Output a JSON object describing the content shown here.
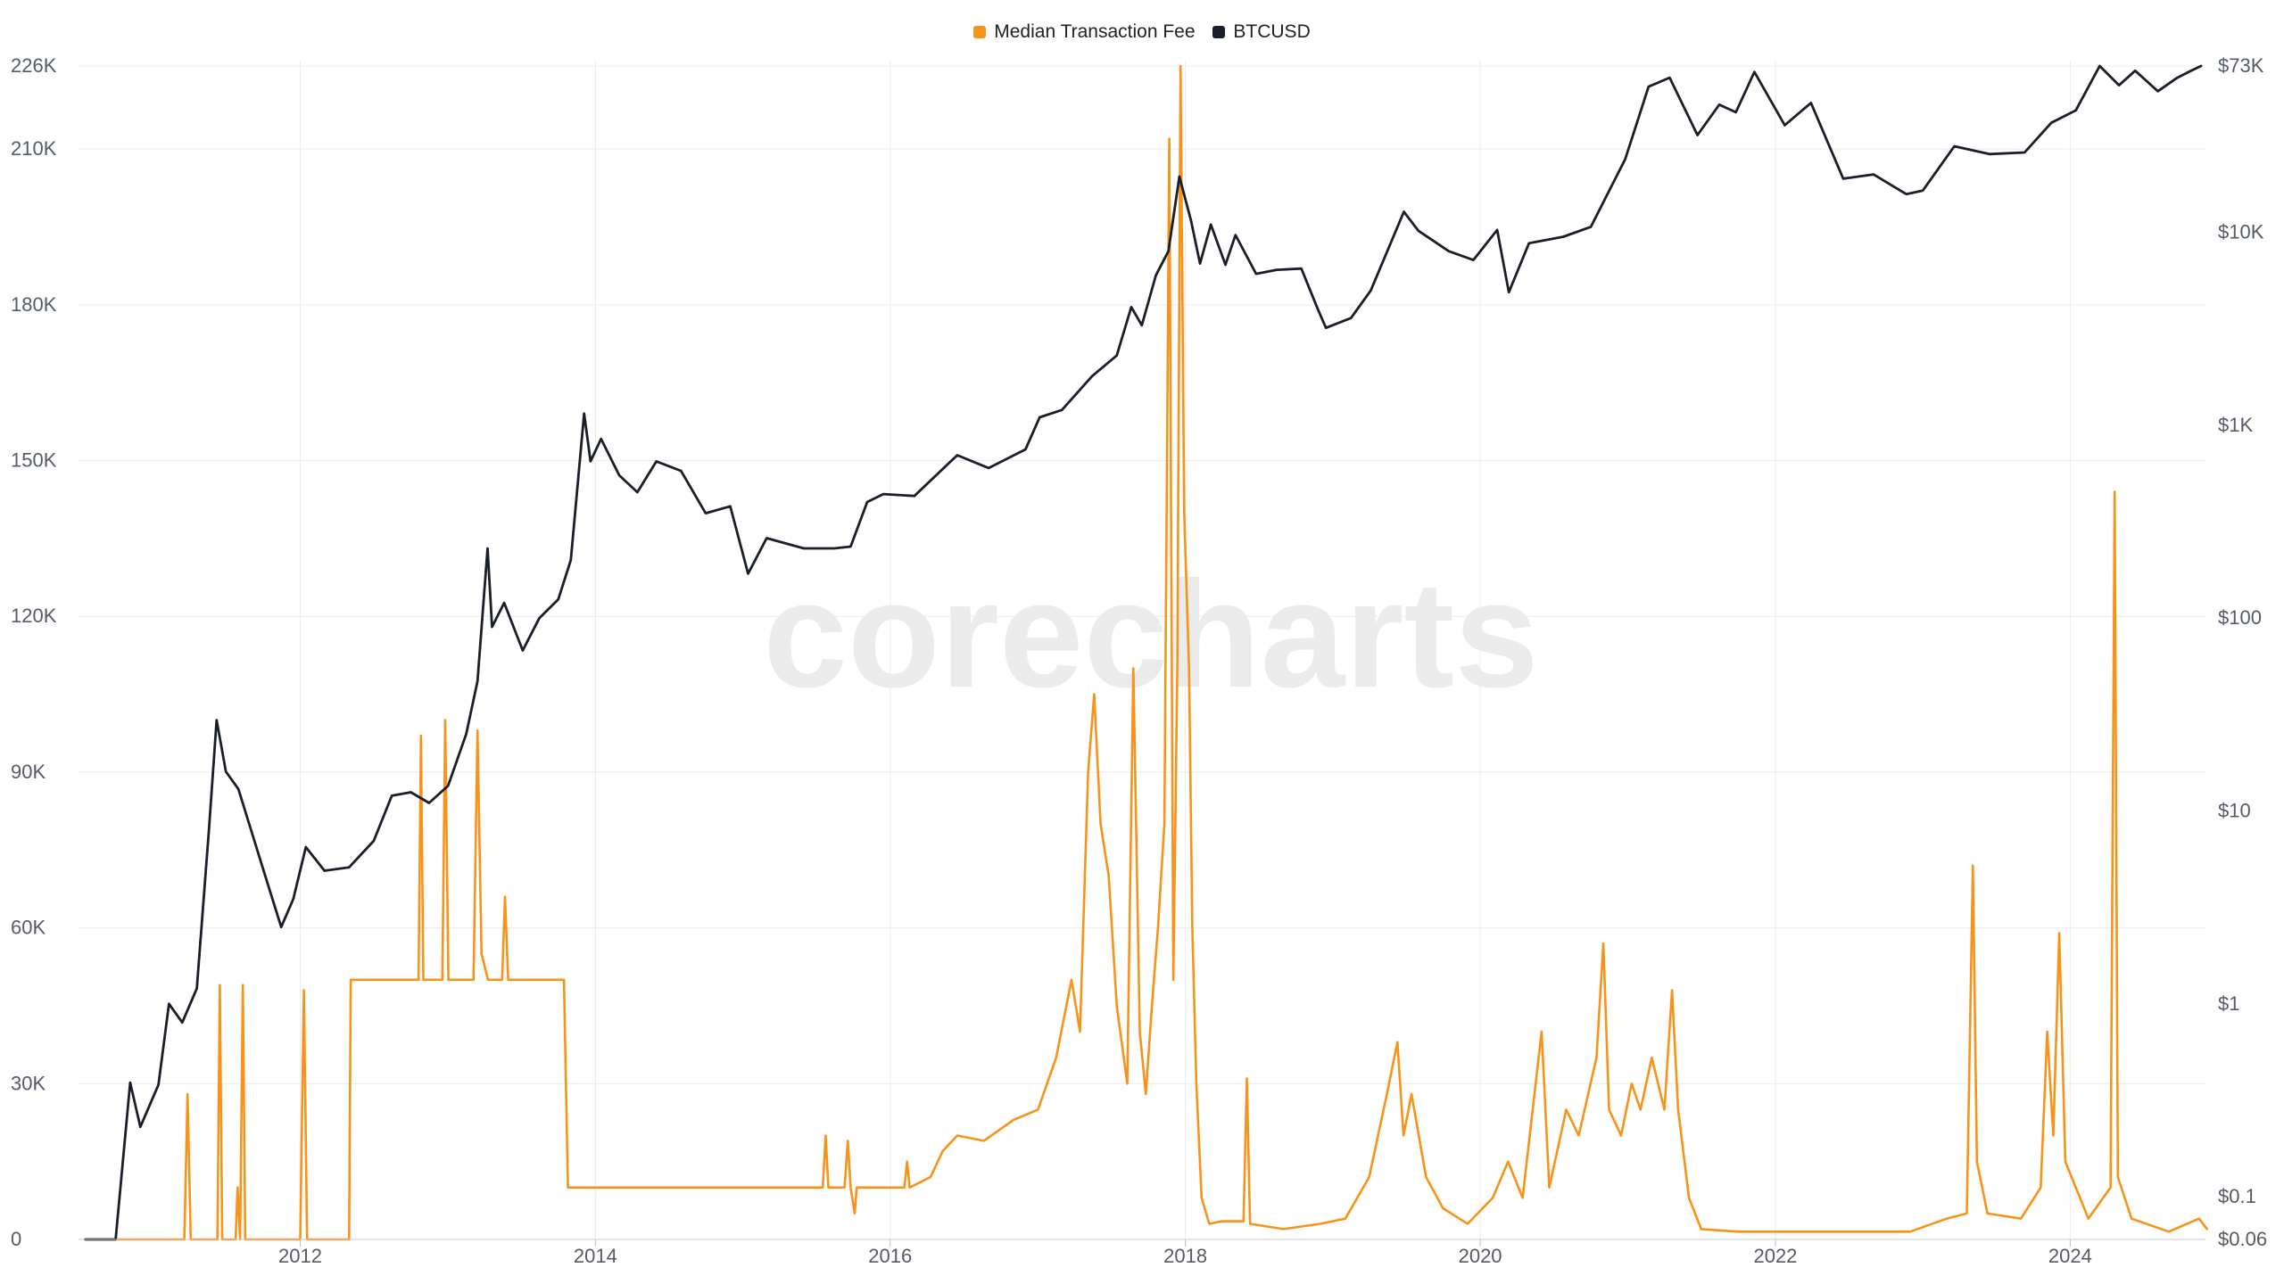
{
  "watermark": "corecharts",
  "legend": [
    {
      "label": "Median Transaction Fee",
      "color": "#f7931a"
    },
    {
      "label": "BTCUSD",
      "color": "#191e29"
    }
  ],
  "chart_data": {
    "type": "line",
    "x_ticks": [
      "2012",
      "2014",
      "2016",
      "2018",
      "2020",
      "2022",
      "2024"
    ],
    "xlim": [
      "2010-07",
      "2024-12"
    ],
    "left_axis": {
      "ticks": [
        "0",
        "30K",
        "60K",
        "90K",
        "120K",
        "150K",
        "180K",
        "210K",
        "226K"
      ],
      "ylim": [
        0,
        226000
      ]
    },
    "right_axis": {
      "scale": "log",
      "ticks": [
        "$0.06",
        "$0.1",
        "$1",
        "$10",
        "$100",
        "$1K",
        "$10K",
        "$73K"
      ],
      "ylim": [
        0.06,
        73000
      ]
    },
    "grid": true,
    "legend_position": "top-center",
    "series": [
      {
        "name": "Median Transaction Fee",
        "color": "#f7931a",
        "axis": "left",
        "points": [
          [
            "2010-07-18",
            0
          ],
          [
            "2011-03-20",
            0
          ],
          [
            "2011-03-28",
            28000
          ],
          [
            "2011-04-05",
            0
          ],
          [
            "2011-06-10",
            0
          ],
          [
            "2011-06-16",
            49000
          ],
          [
            "2011-06-22",
            0
          ],
          [
            "2011-07-25",
            0
          ],
          [
            "2011-07-30",
            10000
          ],
          [
            "2011-08-05",
            0
          ],
          [
            "2011-08-12",
            49000
          ],
          [
            "2011-08-18",
            0
          ],
          [
            "2012-01-01",
            0
          ],
          [
            "2012-01-10",
            48000
          ],
          [
            "2012-01-18",
            0
          ],
          [
            "2012-05-01",
            0
          ],
          [
            "2012-05-05",
            50000
          ],
          [
            "2012-10-20",
            50000
          ],
          [
            "2012-10-26",
            97000
          ],
          [
            "2012-11-01",
            50000
          ],
          [
            "2012-12-18",
            50000
          ],
          [
            "2012-12-25",
            100000
          ],
          [
            "2013-01-02",
            50000
          ],
          [
            "2013-03-05",
            50000
          ],
          [
            "2013-03-15",
            98000
          ],
          [
            "2013-03-25",
            55000
          ],
          [
            "2013-04-10",
            50000
          ],
          [
            "2013-05-15",
            50000
          ],
          [
            "2013-05-22",
            66000
          ],
          [
            "2013-05-30",
            50000
          ],
          [
            "2013-10-15",
            50000
          ],
          [
            "2013-10-20",
            30000
          ],
          [
            "2013-10-25",
            10000
          ],
          [
            "2015-07-18",
            10000
          ],
          [
            "2015-07-25",
            20000
          ],
          [
            "2015-08-01",
            10000
          ],
          [
            "2015-09-10",
            10000
          ],
          [
            "2015-09-18",
            19000
          ],
          [
            "2015-09-25",
            10000
          ],
          [
            "2015-10-05",
            5000
          ],
          [
            "2015-10-10",
            10000
          ],
          [
            "2016-02-05",
            10000
          ],
          [
            "2016-02-12",
            15000
          ],
          [
            "2016-02-18",
            10000
          ],
          [
            "2016-04-10",
            12000
          ],
          [
            "2016-05-10",
            17000
          ],
          [
            "2016-06-15",
            20000
          ],
          [
            "2016-08-20",
            19000
          ],
          [
            "2016-11-01",
            23000
          ],
          [
            "2017-01-01",
            25000
          ],
          [
            "2017-02-15",
            35000
          ],
          [
            "2017-03-25",
            50000
          ],
          [
            "2017-04-15",
            40000
          ],
          [
            "2017-05-05",
            90000
          ],
          [
            "2017-05-20",
            105000
          ],
          [
            "2017-06-05",
            80000
          ],
          [
            "2017-06-25",
            70000
          ],
          [
            "2017-07-15",
            45000
          ],
          [
            "2017-08-10",
            30000
          ],
          [
            "2017-08-25",
            110000
          ],
          [
            "2017-09-10",
            40000
          ],
          [
            "2017-09-25",
            28000
          ],
          [
            "2017-10-10",
            45000
          ],
          [
            "2017-10-25",
            60000
          ],
          [
            "2017-11-10",
            80000
          ],
          [
            "2017-11-22",
            212000
          ],
          [
            "2017-12-02",
            50000
          ],
          [
            "2017-12-12",
            110000
          ],
          [
            "2017-12-20",
            226000
          ],
          [
            "2017-12-29",
            140000
          ],
          [
            "2018-01-10",
            110000
          ],
          [
            "2018-01-18",
            60000
          ],
          [
            "2018-01-28",
            30000
          ],
          [
            "2018-02-10",
            8000
          ],
          [
            "2018-03-01",
            3000
          ],
          [
            "2018-04-01",
            3500
          ],
          [
            "2018-05-25",
            3500
          ],
          [
            "2018-06-02",
            31000
          ],
          [
            "2018-06-10",
            3000
          ],
          [
            "2018-09-01",
            2000
          ],
          [
            "2018-12-01",
            3000
          ],
          [
            "2019-02-01",
            4000
          ],
          [
            "2019-04-01",
            12000
          ],
          [
            "2019-05-15",
            28000
          ],
          [
            "2019-06-10",
            38000
          ],
          [
            "2019-06-25",
            20000
          ],
          [
            "2019-07-15",
            28000
          ],
          [
            "2019-08-20",
            12000
          ],
          [
            "2019-10-01",
            6000
          ],
          [
            "2019-12-01",
            3000
          ],
          [
            "2020-02-01",
            8000
          ],
          [
            "2020-03-10",
            15000
          ],
          [
            "2020-04-15",
            8000
          ],
          [
            "2020-06-01",
            40000
          ],
          [
            "2020-06-20",
            10000
          ],
          [
            "2020-08-01",
            25000
          ],
          [
            "2020-09-01",
            20000
          ],
          [
            "2020-10-15",
            35000
          ],
          [
            "2020-11-01",
            57000
          ],
          [
            "2020-11-15",
            25000
          ],
          [
            "2020-12-15",
            20000
          ],
          [
            "2021-01-10",
            30000
          ],
          [
            "2021-02-01",
            25000
          ],
          [
            "2021-03-01",
            35000
          ],
          [
            "2021-04-01",
            25000
          ],
          [
            "2021-04-20",
            48000
          ],
          [
            "2021-05-05",
            25000
          ],
          [
            "2021-06-01",
            8000
          ],
          [
            "2021-07-01",
            2000
          ],
          [
            "2021-10-01",
            1500
          ],
          [
            "2022-06-01",
            1500
          ],
          [
            "2022-12-01",
            1500
          ],
          [
            "2023-03-01",
            4000
          ],
          [
            "2023-04-20",
            5000
          ],
          [
            "2023-05-05",
            72000
          ],
          [
            "2023-05-15",
            15000
          ],
          [
            "2023-06-10",
            5000
          ],
          [
            "2023-09-01",
            4000
          ],
          [
            "2023-10-20",
            10000
          ],
          [
            "2023-11-05",
            40000
          ],
          [
            "2023-11-20",
            20000
          ],
          [
            "2023-12-05",
            59000
          ],
          [
            "2023-12-20",
            15000
          ],
          [
            "2024-01-15",
            10000
          ],
          [
            "2024-02-15",
            4000
          ],
          [
            "2024-04-10",
            10000
          ],
          [
            "2024-04-20",
            144000
          ],
          [
            "2024-04-28",
            12000
          ],
          [
            "2024-06-01",
            4000
          ],
          [
            "2024-09-01",
            1500
          ],
          [
            "2024-11-15",
            4000
          ],
          [
            "2024-12-05",
            2000
          ]
        ]
      },
      {
        "name": "BTCUSD",
        "color": "#191e29",
        "axis": "right",
        "points": [
          [
            "2010-07-18",
            0.06
          ],
          [
            "2010-10-01",
            0.06
          ],
          [
            "2010-11-06",
            0.39
          ],
          [
            "2010-12-01",
            0.23
          ],
          [
            "2011-01-15",
            0.38
          ],
          [
            "2011-02-10",
            1.0
          ],
          [
            "2011-03-15",
            0.8
          ],
          [
            "2011-04-20",
            1.2
          ],
          [
            "2011-05-20",
            8.0
          ],
          [
            "2011-06-08",
            29.6
          ],
          [
            "2011-07-01",
            16.0
          ],
          [
            "2011-08-01",
            13.0
          ],
          [
            "2011-09-01",
            8.0
          ],
          [
            "2011-10-01",
            5.0
          ],
          [
            "2011-11-15",
            2.5
          ],
          [
            "2011-12-15",
            3.5
          ],
          [
            "2012-01-15",
            6.5
          ],
          [
            "2012-03-01",
            4.9
          ],
          [
            "2012-05-01",
            5.1
          ],
          [
            "2012-07-01",
            7.0
          ],
          [
            "2012-08-15",
            12.0
          ],
          [
            "2012-10-01",
            12.5
          ],
          [
            "2012-11-15",
            11.0
          ],
          [
            "2013-01-01",
            13.5
          ],
          [
            "2013-02-15",
            25.0
          ],
          [
            "2013-03-15",
            47.0
          ],
          [
            "2013-04-09",
            230.0
          ],
          [
            "2013-04-20",
            90.0
          ],
          [
            "2013-05-20",
            120.0
          ],
          [
            "2013-07-05",
            68.0
          ],
          [
            "2013-08-15",
            100.0
          ],
          [
            "2013-10-01",
            125.0
          ],
          [
            "2013-11-01",
            200.0
          ],
          [
            "2013-12-04",
            1150.0
          ],
          [
            "2013-12-20",
            650.0
          ],
          [
            "2014-01-15",
            850.0
          ],
          [
            "2014-03-01",
            550.0
          ],
          [
            "2014-04-15",
            450.0
          ],
          [
            "2014-06-01",
            650.0
          ],
          [
            "2014-08-01",
            580.0
          ],
          [
            "2014-10-01",
            350.0
          ],
          [
            "2014-12-01",
            380.0
          ],
          [
            "2015-01-14",
            170.0
          ],
          [
            "2015-03-01",
            260.0
          ],
          [
            "2015-06-01",
            230.0
          ],
          [
            "2015-08-15",
            230.0
          ],
          [
            "2015-09-25",
            235.0
          ],
          [
            "2015-11-05",
            400.0
          ],
          [
            "2015-12-15",
            440.0
          ],
          [
            "2016-03-01",
            430.0
          ],
          [
            "2016-06-15",
            700.0
          ],
          [
            "2016-09-01",
            600.0
          ],
          [
            "2016-12-01",
            750.0
          ],
          [
            "2017-01-05",
            1100.0
          ],
          [
            "2017-03-01",
            1200.0
          ],
          [
            "2017-05-15",
            1800.0
          ],
          [
            "2017-07-15",
            2300.0
          ],
          [
            "2017-08-20",
            4100.0
          ],
          [
            "2017-09-15",
            3300.0
          ],
          [
            "2017-10-20",
            6000.0
          ],
          [
            "2017-11-20",
            8000.0
          ],
          [
            "2017-12-17",
            19500.0
          ],
          [
            "2018-01-15",
            11500.0
          ],
          [
            "2018-02-06",
            6900.0
          ],
          [
            "2018-03-05",
            11000.0
          ],
          [
            "2018-04-10",
            6800.0
          ],
          [
            "2018-05-05",
            9700.0
          ],
          [
            "2018-06-25",
            6100.0
          ],
          [
            "2018-08-15",
            6400.0
          ],
          [
            "2018-10-15",
            6500.0
          ],
          [
            "2018-11-25",
            4000.0
          ],
          [
            "2018-12-15",
            3200.0
          ],
          [
            "2019-02-15",
            3600.0
          ],
          [
            "2019-04-05",
            5000.0
          ],
          [
            "2019-06-26",
            12800.0
          ],
          [
            "2019-08-01",
            10200.0
          ],
          [
            "2019-10-15",
            8000.0
          ],
          [
            "2019-12-15",
            7200.0
          ],
          [
            "2020-02-12",
            10300.0
          ],
          [
            "2020-03-12",
            4900.0
          ],
          [
            "2020-05-01",
            8800.0
          ],
          [
            "2020-07-25",
            9500.0
          ],
          [
            "2020-10-01",
            10700.0
          ],
          [
            "2020-12-25",
            24000.0
          ],
          [
            "2021-02-21",
            57000.0
          ],
          [
            "2021-04-14",
            63500.0
          ],
          [
            "2021-06-22",
            32000.0
          ],
          [
            "2021-08-15",
            46000.0
          ],
          [
            "2021-09-25",
            42000.0
          ],
          [
            "2021-11-10",
            68000.0
          ],
          [
            "2022-01-24",
            36000.0
          ],
          [
            "2022-03-30",
            47000.0
          ],
          [
            "2022-06-18",
            19000.0
          ],
          [
            "2022-09-01",
            20000.0
          ],
          [
            "2022-11-21",
            15800.0
          ],
          [
            "2023-01-01",
            16500.0
          ],
          [
            "2023-03-20",
            28000.0
          ],
          [
            "2023-06-15",
            25500.0
          ],
          [
            "2023-09-10",
            26000.0
          ],
          [
            "2023-11-15",
            37000.0
          ],
          [
            "2024-01-15",
            43000.0
          ],
          [
            "2024-03-14",
            73000.0
          ],
          [
            "2024-05-01",
            58000.0
          ],
          [
            "2024-06-10",
            69000.0
          ],
          [
            "2024-08-05",
            54000.0
          ],
          [
            "2024-09-20",
            63000.0
          ],
          [
            "2024-10-20",
            68000.0
          ],
          [
            "2024-11-20",
            73000.0
          ]
        ]
      }
    ]
  }
}
